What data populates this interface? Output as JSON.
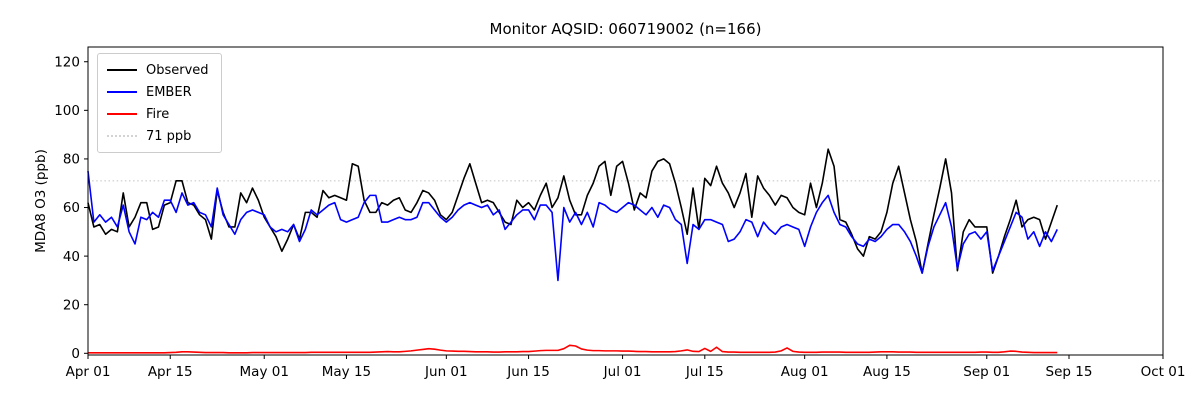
{
  "chart_data": {
    "type": "line",
    "title": "Monitor AQSID: 060719002 (n=166)",
    "xlabel": "",
    "ylabel": "MDA8 O3 (ppb)",
    "ylim": [
      0,
      120
    ],
    "yticks": [
      0,
      20,
      40,
      60,
      80,
      100,
      120
    ],
    "x_axis": {
      "start_date": "Apr 01",
      "end_date": "Oct 01",
      "n_points": 166,
      "tick_labels": [
        "Apr 01",
        "Apr 15",
        "May 01",
        "May 15",
        "Jun 01",
        "Jun 15",
        "Jul 01",
        "Jul 15",
        "Aug 01",
        "Aug 15",
        "Sep 01",
        "Sep 15",
        "Oct 01"
      ],
      "tick_day_offsets": [
        0,
        14,
        30,
        44,
        61,
        75,
        91,
        105,
        122,
        136,
        153,
        167,
        183
      ],
      "total_days": 183
    },
    "grid": false,
    "legend_position": "upper left",
    "threshold": {
      "value": 71,
      "label": "71 ppb",
      "color": "#d3d3d3",
      "style": "dotted"
    },
    "series": [
      {
        "name": "Observed",
        "color": "#000000",
        "values": [
          62,
          52,
          53,
          49,
          51,
          50,
          66,
          52,
          56,
          62,
          62,
          51,
          52,
          61,
          62,
          71,
          71,
          62,
          61,
          57,
          55,
          47,
          67,
          58,
          52,
          52,
          66,
          62,
          68,
          63,
          56,
          52,
          48,
          42,
          47,
          53,
          47,
          58,
          58,
          56,
          67,
          64,
          65,
          64,
          63,
          78,
          77,
          63,
          58,
          58,
          62,
          61,
          63,
          64,
          59,
          58,
          62,
          67,
          66,
          63,
          57,
          55,
          58,
          65,
          72,
          78,
          70,
          62,
          63,
          62,
          58,
          54,
          53,
          63,
          60,
          62,
          59,
          65,
          70,
          60,
          64,
          73,
          63,
          57,
          57,
          65,
          70,
          77,
          79,
          65,
          77,
          79,
          70,
          59,
          66,
          64,
          75,
          79,
          80,
          78,
          70,
          60,
          49,
          68,
          51,
          72,
          69,
          77,
          70,
          66,
          60,
          66,
          74,
          56,
          73,
          68,
          65,
          61,
          65,
          64,
          60,
          58,
          57,
          70,
          60,
          70,
          84,
          77,
          55,
          54,
          49,
          43,
          40,
          48,
          47,
          50,
          58,
          70,
          77,
          66,
          55,
          46,
          33,
          45,
          57,
          68,
          80,
          66,
          34,
          50,
          55,
          52,
          52,
          52,
          33,
          40,
          48,
          55,
          63,
          52,
          55,
          56,
          55,
          47,
          54,
          61
        ]
      },
      {
        "name": "EMBER",
        "color": "#0000ff",
        "values": [
          75,
          54,
          57,
          54,
          56,
          52,
          61,
          50,
          45,
          56,
          55,
          58,
          56,
          63,
          63,
          58,
          66,
          61,
          62,
          58,
          57,
          52,
          68,
          57,
          53,
          49,
          55,
          58,
          59,
          58,
          57,
          52,
          50,
          51,
          50,
          53,
          46,
          51,
          59,
          57,
          59,
          61,
          62,
          55,
          54,
          55,
          56,
          62,
          65,
          65,
          54,
          54,
          55,
          56,
          55,
          55,
          56,
          62,
          62,
          59,
          56,
          54,
          56,
          59,
          61,
          62,
          61,
          60,
          61,
          57,
          59,
          51,
          54,
          57,
          59,
          59,
          55,
          61,
          61,
          58,
          30,
          60,
          54,
          58,
          53,
          58,
          52,
          62,
          61,
          59,
          58,
          60,
          62,
          61,
          59,
          57,
          60,
          56,
          61,
          60,
          55,
          53,
          37,
          53,
          51,
          55,
          55,
          54,
          53,
          46,
          47,
          50,
          55,
          54,
          48,
          54,
          51,
          49,
          52,
          53,
          52,
          51,
          44,
          52,
          58,
          62,
          65,
          58,
          53,
          52,
          48,
          45,
          44,
          47,
          46,
          48,
          51,
          53,
          53,
          50,
          46,
          40,
          33,
          44,
          52,
          57,
          62,
          52,
          35,
          45,
          49,
          50,
          47,
          50,
          34,
          40,
          46,
          52,
          58,
          56,
          47,
          50,
          44,
          50,
          46,
          51
        ]
      },
      {
        "name": "Fire",
        "color": "#ff0000",
        "values": [
          0.2,
          0.2,
          0.2,
          0.2,
          0.2,
          0.2,
          0.2,
          0.2,
          0.2,
          0.2,
          0.2,
          0.2,
          0.2,
          0.2,
          0.3,
          0.4,
          0.6,
          0.6,
          0.5,
          0.4,
          0.3,
          0.3,
          0.3,
          0.3,
          0.2,
          0.2,
          0.2,
          0.2,
          0.3,
          0.3,
          0.3,
          0.3,
          0.3,
          0.3,
          0.3,
          0.3,
          0.3,
          0.3,
          0.4,
          0.4,
          0.4,
          0.4,
          0.4,
          0.4,
          0.4,
          0.4,
          0.4,
          0.4,
          0.4,
          0.5,
          0.6,
          0.7,
          0.6,
          0.6,
          0.8,
          1.0,
          1.3,
          1.6,
          1.9,
          1.7,
          1.3,
          1.0,
          0.9,
          0.8,
          0.8,
          0.7,
          0.6,
          0.6,
          0.6,
          0.5,
          0.5,
          0.6,
          0.6,
          0.6,
          0.7,
          0.7,
          0.9,
          1.1,
          1.2,
          1.2,
          1.2,
          1.9,
          3.3,
          3.0,
          1.8,
          1.3,
          1.1,
          1.1,
          1.0,
          1.0,
          1.0,
          0.9,
          0.9,
          0.8,
          0.7,
          0.7,
          0.6,
          0.6,
          0.6,
          0.6,
          0.7,
          1.0,
          1.4,
          0.8,
          0.7,
          2.0,
          0.8,
          2.5,
          0.7,
          0.5,
          0.5,
          0.4,
          0.4,
          0.4,
          0.4,
          0.4,
          0.4,
          0.5,
          1.0,
          2.2,
          0.8,
          0.5,
          0.4,
          0.4,
          0.4,
          0.5,
          0.5,
          0.5,
          0.5,
          0.4,
          0.4,
          0.4,
          0.4,
          0.4,
          0.5,
          0.6,
          0.6,
          0.6,
          0.5,
          0.5,
          0.5,
          0.4,
          0.4,
          0.4,
          0.4,
          0.4,
          0.4,
          0.4,
          0.4,
          0.4,
          0.4,
          0.4,
          0.5,
          0.5,
          0.4,
          0.4,
          0.6,
          0.9,
          0.8,
          0.5,
          0.4,
          0.3,
          0.3,
          0.3,
          0.3,
          0.3
        ]
      }
    ]
  }
}
